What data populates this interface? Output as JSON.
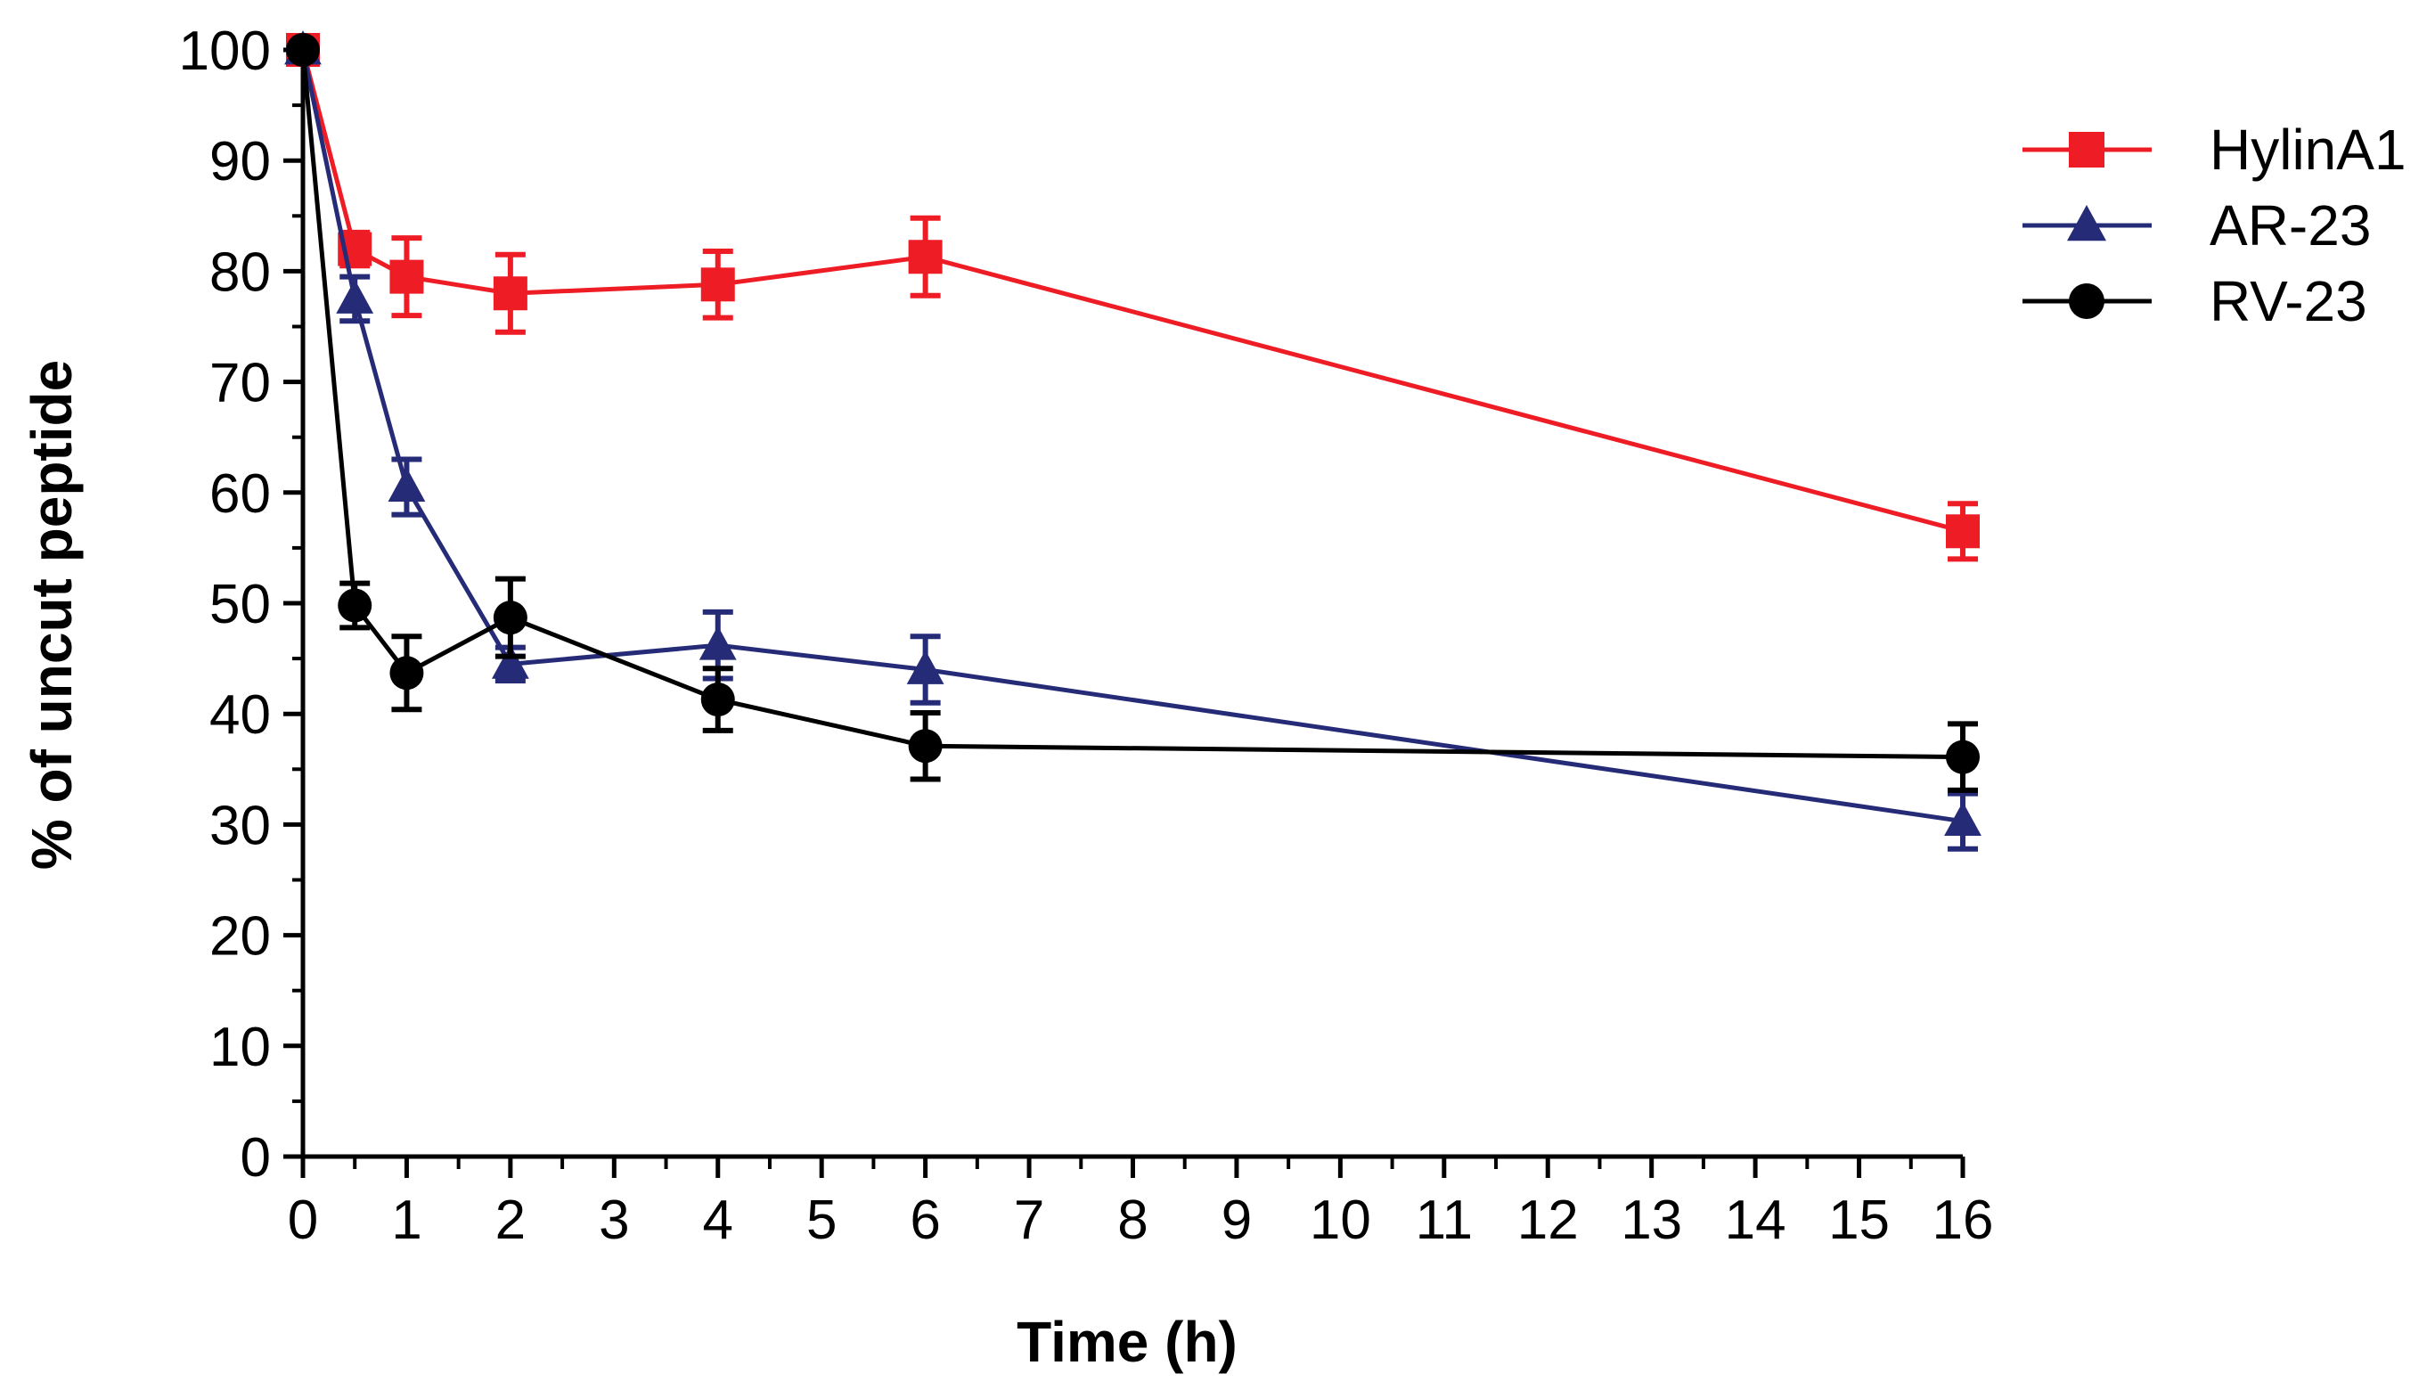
{
  "chart_data": {
    "type": "line",
    "title": "",
    "xlabel": "Time (h)",
    "ylabel": "% of uncut peptide",
    "xlim": [
      0,
      16
    ],
    "ylim": [
      0,
      100
    ],
    "x_ticks": [
      "0",
      "1",
      "2",
      "3",
      "4",
      "5",
      "6",
      "7",
      "8",
      "9",
      "10",
      "11",
      "12",
      "13",
      "14",
      "15",
      "16"
    ],
    "y_ticks": [
      "0",
      "10",
      "20",
      "30",
      "40",
      "50",
      "60",
      "70",
      "80",
      "90",
      "100"
    ],
    "grid": false,
    "legend_position": "top-right",
    "x": [
      0,
      0.5,
      1,
      2,
      4,
      6,
      16
    ],
    "series": [
      {
        "name": "HylinA1",
        "color": "#ee1c25",
        "marker": "square",
        "values": [
          100,
          82,
          79.5,
          78,
          78.8,
          81.3,
          56.5
        ],
        "errors": [
          0,
          1.5,
          3.5,
          3.5,
          3,
          3.5,
          2.5
        ]
      },
      {
        "name": "AR-23",
        "color": "#262b78",
        "marker": "triangle",
        "values": [
          100,
          77.5,
          60.5,
          44.5,
          46.2,
          44,
          30.3
        ],
        "errors": [
          0,
          2,
          2.5,
          1.5,
          3,
          3,
          2.5
        ]
      },
      {
        "name": "RV-23",
        "color": "#000000",
        "marker": "circle",
        "values": [
          100,
          49.8,
          43.7,
          48.7,
          41.3,
          37.1,
          36.1
        ],
        "errors": [
          0,
          2,
          3.3,
          3.5,
          2.8,
          3,
          3
        ]
      }
    ]
  }
}
